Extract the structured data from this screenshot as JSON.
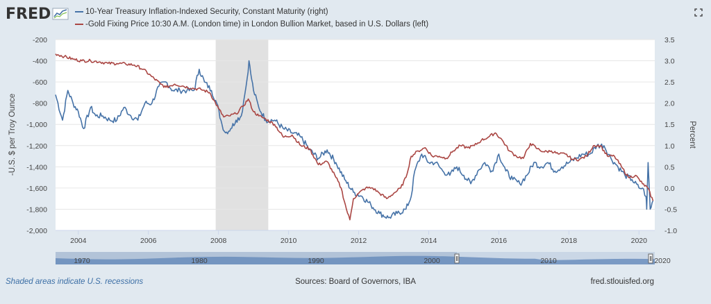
{
  "brand": {
    "logo_text": "FRED"
  },
  "legend": [
    {
      "label": "10-Year Treasury Inflation-Indexed Security, Constant Maturity (right)",
      "color": "#4572a7"
    },
    {
      "label": "-Gold Fixing Price 10:30 A.M. (London time) in London Bullion Market, based in U.S. Dollars (left)",
      "color": "#aa4643"
    }
  ],
  "footer": {
    "recessions_note": "Shaded areas indicate U.S. recessions",
    "sources": "Sources: Board of Governors, IBA",
    "site": "fred.stlouisfed.org"
  },
  "navigator": {
    "tick_labels": [
      "1970",
      "1980",
      "1990",
      "2000",
      "2010",
      "2020"
    ]
  },
  "chart_data": {
    "type": "line",
    "title": "",
    "xlabel": "",
    "ylabel_left": "-U.S. $ per Troy Ounce",
    "ylabel_right": "Percent",
    "xlim": [
      2003.35,
      2020.45
    ],
    "ylim_left": [
      -2000,
      -200
    ],
    "ylim_right": [
      -1.0,
      3.5
    ],
    "x_ticks": [
      2004,
      2006,
      2008,
      2010,
      2012,
      2014,
      2016,
      2018,
      2020
    ],
    "y_ticks_left": [
      -200,
      -400,
      -600,
      -800,
      -1000,
      -1200,
      -1400,
      -1600,
      -1800,
      -2000
    ],
    "y_ticks_left_labels": [
      "-200",
      "-400",
      "-600",
      "-800",
      "-1,000",
      "-1,200",
      "-1,400",
      "-1,600",
      "-1,800",
      "-2,000"
    ],
    "y_ticks_right": [
      3.5,
      3.0,
      2.5,
      2.0,
      1.5,
      1.0,
      0.5,
      0.0,
      -0.5,
      -1.0
    ],
    "y_ticks_right_labels": [
      "3.5",
      "3.0",
      "2.5",
      "2.0",
      "1.5",
      "1.0",
      "0.5",
      "0.0",
      "-0.5",
      "-1.0"
    ],
    "recessions": [
      [
        2007.92,
        2009.42
      ]
    ],
    "grid": true,
    "series": [
      {
        "name": "10-Year Treasury Inflation-Indexed Security, Constant Maturity (right)",
        "axis": "right",
        "color": "#4572a7",
        "x": [
          2003.35,
          2003.55,
          2003.7,
          2003.85,
          2004.0,
          2004.15,
          2004.35,
          2004.5,
          2004.7,
          2004.9,
          2005.1,
          2005.3,
          2005.5,
          2005.7,
          2005.9,
          2006.1,
          2006.3,
          2006.5,
          2006.7,
          2006.9,
          2007.1,
          2007.3,
          2007.45,
          2007.6,
          2007.8,
          2007.95,
          2008.1,
          2008.2,
          2008.35,
          2008.5,
          2008.65,
          2008.75,
          2008.82,
          2008.87,
          2008.92,
          2009.0,
          2009.15,
          2009.35,
          2009.6,
          2009.85,
          2010.1,
          2010.35,
          2010.6,
          2010.85,
          2011.1,
          2011.35,
          2011.6,
          2011.85,
          2012.1,
          2012.35,
          2012.6,
          2012.85,
          2013.1,
          2013.35,
          2013.5,
          2013.6,
          2013.8,
          2014.0,
          2014.2,
          2014.4,
          2014.6,
          2014.8,
          2015.0,
          2015.2,
          2015.4,
          2015.6,
          2015.8,
          2016.0,
          2016.2,
          2016.4,
          2016.6,
          2016.8,
          2017.0,
          2017.2,
          2017.4,
          2017.6,
          2017.8,
          2018.0,
          2018.2,
          2018.4,
          2018.6,
          2018.8,
          2019.0,
          2019.2,
          2019.4,
          2019.6,
          2019.8,
          2020.0,
          2020.1,
          2020.2,
          2020.22,
          2020.26,
          2020.32,
          2020.4
        ],
        "values": [
          2.2,
          1.6,
          2.3,
          2.0,
          1.8,
          1.4,
          1.9,
          1.7,
          1.7,
          1.6,
          1.6,
          1.9,
          1.7,
          1.6,
          2.0,
          2.0,
          2.4,
          2.5,
          2.3,
          2.3,
          2.3,
          2.3,
          2.8,
          2.5,
          2.3,
          2.0,
          1.5,
          1.3,
          1.4,
          1.6,
          1.7,
          2.2,
          2.6,
          3.0,
          2.7,
          2.3,
          1.9,
          1.6,
          1.6,
          1.4,
          1.3,
          1.2,
          0.9,
          0.7,
          0.9,
          0.6,
          0.2,
          -0.1,
          -0.2,
          -0.4,
          -0.6,
          -0.7,
          -0.6,
          -0.5,
          -0.2,
          0.4,
          0.8,
          0.6,
          0.6,
          0.4,
          0.3,
          0.5,
          0.3,
          0.1,
          0.4,
          0.6,
          0.4,
          0.8,
          0.4,
          0.2,
          0.1,
          0.3,
          0.6,
          0.5,
          0.6,
          0.4,
          0.5,
          0.6,
          0.7,
          0.8,
          0.8,
          1.0,
          1.0,
          0.7,
          0.5,
          0.3,
          0.2,
          0.0,
          0.0,
          -0.2,
          -0.5,
          0.6,
          -0.5,
          -0.3
        ]
      },
      {
        "name": "-Gold Fixing Price 10:30 A.M. (London time) in London Bullion Market, based in U.S. Dollars (left)",
        "axis": "left",
        "color": "#aa4643",
        "x": [
          2003.35,
          2003.6,
          2003.85,
          2004.1,
          2004.35,
          2004.6,
          2004.85,
          2005.1,
          2005.35,
          2005.6,
          2005.85,
          2006.1,
          2006.35,
          2006.5,
          2006.75,
          2007.0,
          2007.25,
          2007.5,
          2007.75,
          2008.0,
          2008.15,
          2008.3,
          2008.5,
          2008.7,
          2008.85,
          2009.0,
          2009.15,
          2009.35,
          2009.6,
          2009.85,
          2010.1,
          2010.35,
          2010.6,
          2010.85,
          2011.1,
          2011.35,
          2011.5,
          2011.65,
          2011.75,
          2011.85,
          2012.0,
          2012.2,
          2012.4,
          2012.6,
          2012.8,
          2013.0,
          2013.2,
          2013.35,
          2013.5,
          2013.7,
          2013.9,
          2014.1,
          2014.3,
          2014.5,
          2014.7,
          2014.9,
          2015.1,
          2015.3,
          2015.5,
          2015.7,
          2015.9,
          2016.1,
          2016.3,
          2016.5,
          2016.7,
          2016.9,
          2017.1,
          2017.3,
          2017.5,
          2017.7,
          2017.9,
          2018.1,
          2018.3,
          2018.5,
          2018.7,
          2018.9,
          2019.1,
          2019.3,
          2019.5,
          2019.7,
          2019.9,
          2020.1,
          2020.25,
          2020.4
        ],
        "values": [
          -335,
          -360,
          -385,
          -400,
          -400,
          -410,
          -425,
          -425,
          -430,
          -440,
          -480,
          -550,
          -620,
          -650,
          -620,
          -640,
          -660,
          -670,
          -700,
          -850,
          -930,
          -920,
          -900,
          -830,
          -760,
          -880,
          -920,
          -950,
          -1000,
          -1120,
          -1100,
          -1200,
          -1230,
          -1380,
          -1350,
          -1500,
          -1600,
          -1800,
          -1900,
          -1700,
          -1650,
          -1600,
          -1600,
          -1650,
          -1700,
          -1650,
          -1600,
          -1500,
          -1300,
          -1250,
          -1220,
          -1300,
          -1300,
          -1320,
          -1250,
          -1200,
          -1220,
          -1200,
          -1150,
          -1120,
          -1080,
          -1150,
          -1250,
          -1300,
          -1320,
          -1180,
          -1230,
          -1260,
          -1250,
          -1280,
          -1280,
          -1330,
          -1330,
          -1300,
          -1200,
          -1200,
          -1300,
          -1300,
          -1400,
          -1500,
          -1480,
          -1560,
          -1600,
          -1720
        ]
      }
    ]
  }
}
